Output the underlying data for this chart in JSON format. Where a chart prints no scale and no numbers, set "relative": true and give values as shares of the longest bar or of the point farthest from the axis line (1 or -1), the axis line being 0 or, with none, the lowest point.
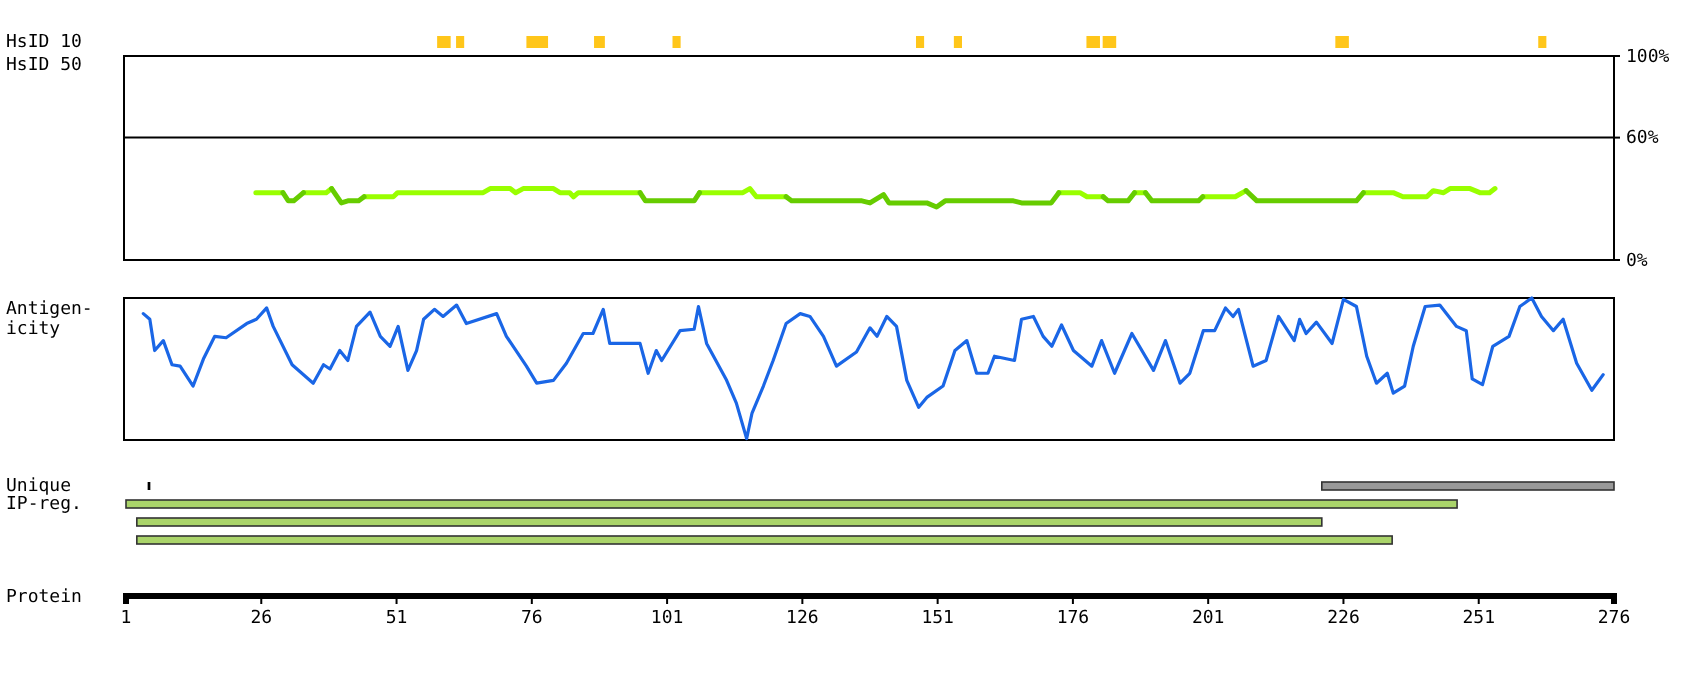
{
  "chart_data": [
    {
      "type": "bar",
      "orientation": "horizontal",
      "categories": [
        "HsID 10"
      ],
      "xlim": [
        1,
        276
      ],
      "tick_labels": "y",
      "series": [
        {
          "color": "#ffc61a",
          "base": [
            58.5
          ],
          "values": [
            2.5
          ]
        },
        {
          "color": "#ffc61a",
          "base": [
            62
          ],
          "values": [
            1.5
          ]
        },
        {
          "color": "#ffc61a",
          "base": [
            75
          ],
          "values": [
            4
          ]
        },
        {
          "color": "#ffc61a",
          "base": [
            87.5
          ],
          "values": [
            2
          ]
        },
        {
          "color": "#ffc61a",
          "base": [
            102
          ],
          "values": [
            1.5
          ]
        },
        {
          "color": "#ffc61a",
          "base": [
            147
          ],
          "values": [
            1.5
          ]
        },
        {
          "color": "#ffc61a",
          "base": [
            154
          ],
          "values": [
            1.5
          ]
        },
        {
          "color": "#ffc61a",
          "base": [
            178.5
          ],
          "values": [
            2.5
          ]
        },
        {
          "color": "#ffc61a",
          "base": [
            181.5
          ],
          "values": [
            2.5
          ]
        },
        {
          "color": "#ffc61a",
          "base": [
            224.5
          ],
          "values": [
            2.5
          ]
        },
        {
          "color": "#ffc61a",
          "base": [
            262
          ],
          "values": [
            1.5
          ]
        }
      ]
    },
    {
      "type": "line",
      "ylabel": "HsID 50",
      "xlim": [
        1,
        276
      ],
      "ylim": [
        0,
        100
      ],
      "yticks": [
        {
          "value": 0,
          "label": "0%"
        },
        {
          "value": 60,
          "label": "60%"
        },
        {
          "value": 100,
          "label": "100%"
        }
      ],
      "grid": "y",
      "tick_labels": "y",
      "series": [
        {
          "color": "#99ff00",
          "x": [
            25,
            30,
            31,
            33.8,
            38,
            39,
            40,
            45,
            50.4,
            51.2,
            67,
            68.3,
            72,
            73,
            74.4,
            80,
            81.2,
            83,
            83.7,
            84.6,
            96,
            97,
            107,
            115,
            116.3,
            117.5,
            123,
            124,
            173.4,
            177.3,
            178.6,
            181.6,
            182,
            187.4,
            189.4,
            190,
            200,
            206,
            208,
            209,
            229.7,
            235.2,
            237,
            241.4,
            242.6,
            244.5,
            245.7,
            249.4,
            251.2,
            253,
            254
          ],
          "values": [
            33,
            33,
            null,
            33,
            33,
            35,
            null,
            31,
            31,
            33,
            33,
            35,
            35,
            33,
            35,
            35,
            33,
            33,
            31,
            33,
            33,
            null,
            33,
            33,
            35,
            31,
            31,
            null,
            33,
            33,
            31,
            31,
            null,
            33,
            33,
            null,
            31,
            31,
            34,
            null,
            33,
            33,
            31,
            31,
            34,
            33,
            35,
            35,
            33,
            33,
            35
          ]
        },
        {
          "color": "#66cc00",
          "x": [
            30,
            31,
            32,
            33.8,
            34,
            39,
            40.8,
            42,
            44,
            45,
            46,
            96,
            97,
            106,
            107,
            108,
            123,
            124,
            137,
            138.5,
            141,
            142,
            149,
            150.8,
            152.4,
            165,
            166.5,
            172,
            173.4,
            174,
            181.6,
            182.5,
            186.2,
            187.4,
            188,
            189.4,
            190.6,
            199.2,
            200,
            201,
            208,
            210,
            228.4,
            229.7
          ],
          "values": [
            33,
            29,
            29,
            33,
            null,
            35,
            28,
            29,
            29,
            31,
            null,
            33,
            29,
            29,
            33,
            null,
            31,
            29,
            29,
            28,
            32,
            28,
            28,
            26,
            29,
            29,
            28,
            28,
            33,
            null,
            31,
            29,
            29,
            33,
            null,
            33,
            29,
            29,
            31,
            null,
            34,
            29,
            29,
            33
          ]
        }
      ]
    },
    {
      "type": "line",
      "relative": true,
      "ylabel": "Antigen-\nicity",
      "xlim": [
        1,
        276
      ],
      "tick_labels": false,
      "series": [
        {
          "color": "#1a66e6",
          "x": [
            4.2,
            5.4,
            6.3,
            7.9,
            9.5,
            11,
            13.4,
            15.3,
            17.4,
            19.5,
            23.3,
            25.1,
            27,
            28.2,
            31.7,
            35.6,
            37.5,
            38.7,
            40.5,
            42,
            43.6,
            46.1,
            48,
            49.8,
            51.3,
            53.1,
            54.7,
            56,
            58,
            59.6,
            62.1,
            63.9,
            69.5,
            71.3,
            75,
            76.9,
            80,
            82.4,
            85.5,
            87.3,
            89.2,
            90.4,
            92.9,
            96,
            97.5,
            99,
            100,
            103.4,
            106,
            106.8,
            108.3,
            112,
            113.8,
            115.7,
            116.7,
            118.8,
            120.6,
            123,
            125.6,
            127.4,
            129.9,
            132.3,
            136,
            138.5,
            139.8,
            141.6,
            143.4,
            145.3,
            147.5,
            149,
            152,
            154.2,
            156.4,
            158.2,
            160.3,
            161.5,
            165.2,
            166.5,
            168.7,
            170.5,
            172.1,
            173.9,
            176.1,
            179.5,
            181.3,
            183.7,
            186.9,
            190.9,
            193.1,
            195.8,
            197.6,
            200.1,
            202.2,
            204.2,
            205.6,
            206.6,
            209.3,
            211.7,
            214,
            215.7,
            216.9,
            217.9,
            219.1,
            221,
            223.9,
            226,
            228.4,
            230.3,
            232.1,
            234.1,
            235.2,
            237.3,
            238.9,
            241.1,
            243.8,
            246.9,
            248.7,
            249.8,
            251.7,
            253.6,
            256.6,
            258.6,
            260.8,
            262.6,
            264.8,
            266.6,
            269.1,
            271.9,
            274
          ],
          "values": [
            0.89,
            0.85,
            0.63,
            0.7,
            0.53,
            0.52,
            0.38,
            0.57,
            0.73,
            0.72,
            0.82,
            0.85,
            0.93,
            0.8,
            0.53,
            0.4,
            0.53,
            0.5,
            0.63,
            0.56,
            0.8,
            0.9,
            0.73,
            0.66,
            0.8,
            0.49,
            0.63,
            0.85,
            0.92,
            0.87,
            0.95,
            0.82,
            0.89,
            0.73,
            0.52,
            0.4,
            0.42,
            0.54,
            0.75,
            0.75,
            0.92,
            0.68,
            0.68,
            0.68,
            0.47,
            0.63,
            0.56,
            0.77,
            0.78,
            0.94,
            0.68,
            0.42,
            0.26,
            0.01,
            0.19,
            0.38,
            0.56,
            0.82,
            0.89,
            0.87,
            0.73,
            0.52,
            0.62,
            0.79,
            0.73,
            0.87,
            0.8,
            0.42,
            0.23,
            0.3,
            0.38,
            0.63,
            0.7,
            0.47,
            0.47,
            0.59,
            0.56,
            0.85,
            0.87,
            0.73,
            0.66,
            0.81,
            0.63,
            0.52,
            0.7,
            0.47,
            0.75,
            0.49,
            0.7,
            0.4,
            0.47,
            0.77,
            0.77,
            0.93,
            0.87,
            0.92,
            0.52,
            0.56,
            0.87,
            0.77,
            0.7,
            0.85,
            0.75,
            0.83,
            0.68,
            0.99,
            0.94,
            0.59,
            0.4,
            0.47,
            0.33,
            0.38,
            0.66,
            0.94,
            0.95,
            0.8,
            0.77,
            0.43,
            0.39,
            0.66,
            0.73,
            0.94,
            1,
            0.87,
            0.77,
            0.85,
            0.54,
            0.35,
            0.46
          ]
        }
      ]
    },
    {
      "type": "bar",
      "orientation": "horizontal",
      "categories": [
        "Unique",
        "IP-reg.",
        null,
        null
      ],
      "xlim": [
        1,
        276
      ],
      "xticks": [
        1,
        26,
        51,
        76,
        101,
        126,
        151,
        176,
        201,
        226,
        251,
        276
      ],
      "xlabel": "Protein",
      "series": [
        {
          "color": "#000000",
          "base": [
            5,
            null,
            null,
            null
          ],
          "values": [
            0.5,
            null,
            null,
            null
          ]
        },
        {
          "color": "#999999",
          "base": [
            222,
            null,
            null,
            null
          ],
          "values": [
            54,
            null,
            null,
            null
          ]
        },
        {
          "color": "#aad46a",
          "base": [
            null,
            1,
            3,
            3
          ],
          "values": [
            null,
            246,
            219,
            232
          ]
        }
      ]
    }
  ]
}
